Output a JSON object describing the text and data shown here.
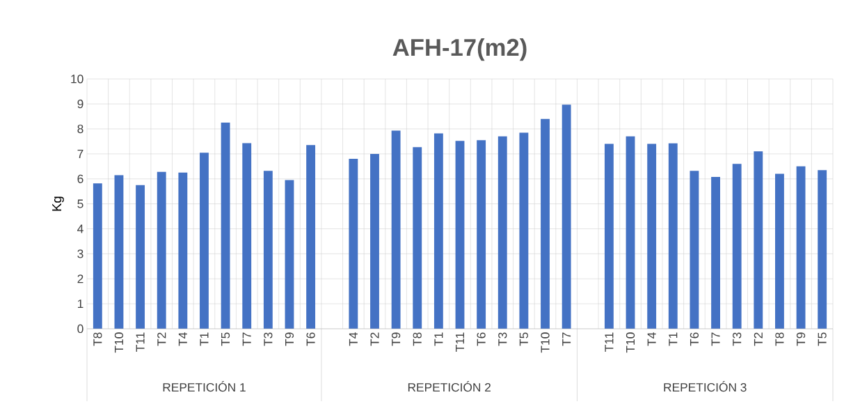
{
  "chart_data": {
    "type": "bar",
    "title": "AFH-17(m2)",
    "ylabel": "Kg",
    "categories": [
      "T8",
      "T10",
      "T11",
      "T2",
      "T4",
      "T1",
      "T5",
      "T7",
      "T3",
      "T9",
      "T6",
      null,
      "T4",
      "T2",
      "T9",
      "T8",
      "T1",
      "T11",
      "T6",
      "T3",
      "T5",
      "T10",
      "T7",
      null,
      "T11",
      "T10",
      "T4",
      "T1",
      "T6",
      "T7",
      "T3",
      "T2",
      "T8",
      "T9",
      "T5"
    ],
    "values": [
      5.82,
      6.15,
      5.75,
      6.28,
      6.25,
      7.05,
      8.25,
      7.43,
      6.32,
      5.95,
      7.35,
      null,
      6.8,
      7.0,
      7.93,
      7.27,
      7.82,
      7.52,
      7.55,
      7.7,
      7.85,
      8.4,
      8.97,
      null,
      7.4,
      7.7,
      7.4,
      7.42,
      6.32,
      6.08,
      6.6,
      7.1,
      6.2,
      6.5,
      6.35
    ],
    "color": "#4472c4",
    "ylim": [
      0,
      10
    ],
    "yticks": [
      0,
      1,
      2,
      3,
      4,
      5,
      6,
      7,
      8,
      9,
      10
    ],
    "grid": true,
    "annotations": [
      "REPETICIÓN 1",
      "REPETICIÓN 2",
      "REPETICIÓN 3"
    ]
  }
}
